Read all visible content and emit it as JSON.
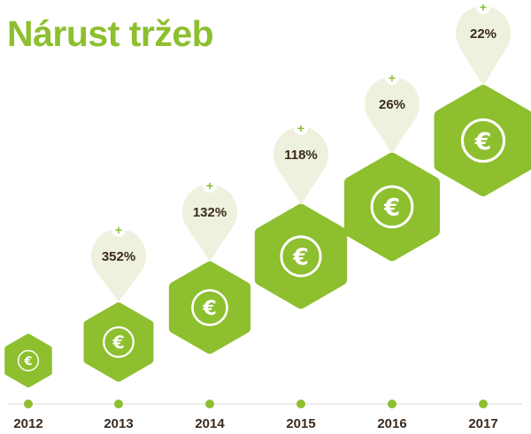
{
  "colors": {
    "green": "#8dbf2e",
    "bubble": "#edf1dd",
    "text": "#3a2a1e",
    "axis": "#e6e6e6"
  },
  "chart_data": {
    "type": "bar",
    "title": "Nárust tržeb",
    "categories": [
      "2012",
      "2013",
      "2014",
      "2015",
      "2016",
      "2017"
    ],
    "growth_percent": [
      null,
      352,
      132,
      118,
      26,
      22
    ],
    "growth_labels": [
      "",
      "352%",
      "132%",
      "118%",
      "26%",
      "22%"
    ],
    "marker_symbol": "€",
    "growth_marker": "+"
  }
}
